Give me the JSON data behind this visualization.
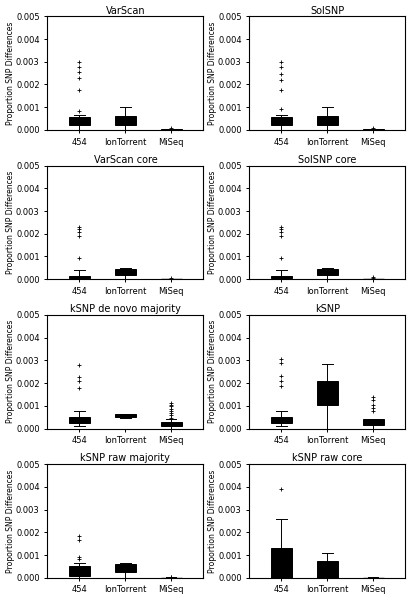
{
  "titles": [
    "VarScan",
    "SolSNP",
    "VarScan core",
    "SolSNP core",
    "kSNP de novo majority",
    "kSNP",
    "kSNP raw majority",
    "kSNP raw core"
  ],
  "categories": [
    "454",
    "IonTorrent",
    "MiSeq"
  ],
  "ylim": [
    0,
    0.005
  ],
  "yticks": [
    0.0,
    0.001,
    0.002,
    0.003,
    0.004,
    0.005
  ],
  "ylabel": "Proportion SNP Differences",
  "box_data": {
    "VarScan": {
      "454": {
        "q1": 0.0002,
        "median": 0.0004,
        "q3": 0.00055,
        "whislo": 0.0,
        "whishi": 0.00065,
        "fliers": [
          0.00085,
          0.00175,
          0.0023,
          0.00255,
          0.00275,
          0.003
        ]
      },
      "IonTorrent": {
        "q1": 0.0002,
        "median": 0.0004,
        "q3": 0.0006,
        "whislo": 0.0,
        "whishi": 0.001,
        "fliers": []
      },
      "MiSeq": {
        "q1": 0.0,
        "median": 0.0,
        "q3": 2e-05,
        "whislo": 0.0,
        "whishi": 3e-05,
        "fliers": [
          9e-05
        ]
      }
    },
    "SolSNP": {
      "454": {
        "q1": 0.0002,
        "median": 0.0004,
        "q3": 0.00055,
        "whislo": 0.0,
        "whishi": 0.00065,
        "fliers": [
          0.0009,
          0.00175,
          0.0022,
          0.00245,
          0.00275,
          0.003
        ]
      },
      "IonTorrent": {
        "q1": 0.0002,
        "median": 0.0004,
        "q3": 0.0006,
        "whislo": 0.0,
        "whishi": 0.001,
        "fliers": []
      },
      "MiSeq": {
        "q1": 0.0,
        "median": 0.0,
        "q3": 2e-05,
        "whislo": 0.0,
        "whishi": 5e-05,
        "fliers": [
          9e-05
        ]
      }
    },
    "VarScan core": {
      "454": {
        "q1": 5e-05,
        "median": 0.0001,
        "q3": 0.00015,
        "whislo": 0.0,
        "whishi": 0.0004,
        "fliers": [
          0.00095,
          0.0019,
          0.0021,
          0.0022,
          0.0023
        ]
      },
      "IonTorrent": {
        "q1": 0.0002,
        "median": 0.0003,
        "q3": 0.00045,
        "whislo": 0.0,
        "whishi": 0.0005,
        "fliers": []
      },
      "MiSeq": {
        "q1": 0.0,
        "median": 0.0,
        "q3": 1.5e-05,
        "whislo": 0.0,
        "whishi": 2e-05,
        "fliers": [
          6.5e-05
        ]
      }
    },
    "SolSNP core": {
      "454": {
        "q1": 5e-05,
        "median": 0.0001,
        "q3": 0.00015,
        "whislo": 0.0,
        "whishi": 0.0004,
        "fliers": [
          0.00095,
          0.0019,
          0.0021,
          0.0022,
          0.0023
        ]
      },
      "IonTorrent": {
        "q1": 0.0002,
        "median": 0.0003,
        "q3": 0.00045,
        "whislo": 0.0,
        "whishi": 0.0005,
        "fliers": []
      },
      "MiSeq": {
        "q1": 0.0,
        "median": 0.0,
        "q3": 1.5e-05,
        "whislo": 0.0,
        "whishi": 2.5e-05,
        "fliers": [
          6e-05,
          7.5e-05
        ]
      }
    },
    "kSNP de novo majority": {
      "454": {
        "q1": 0.00025,
        "median": 0.00035,
        "q3": 0.0005,
        "whislo": 0.0001,
        "whishi": 0.00075,
        "fliers": [
          0.0018,
          0.0021,
          0.00225,
          0.0028
        ]
      },
      "IonTorrent": {
        "q1": 0.0005,
        "median": 0.00058,
        "q3": 0.00062,
        "whislo": 0.00045,
        "whishi": 0.00065,
        "fliers": []
      },
      "MiSeq": {
        "q1": 0.0001,
        "median": 0.0002,
        "q3": 0.0003,
        "whislo": 0.0,
        "whishi": 0.0004,
        "fliers": [
          0.00048,
          0.00058,
          0.00068,
          0.00078,
          0.00088,
          0.00098,
          0.00105,
          0.00112
        ]
      }
    },
    "kSNP": {
      "454": {
        "q1": 0.00025,
        "median": 0.00035,
        "q3": 0.0005,
        "whislo": 0.0001,
        "whishi": 0.00075,
        "fliers": [
          0.00185,
          0.0021,
          0.0023,
          0.0029,
          0.00305
        ]
      },
      "IonTorrent": {
        "q1": 0.00105,
        "median": 0.00155,
        "q3": 0.0021,
        "whislo": 0.0,
        "whishi": 0.00285,
        "fliers": []
      },
      "MiSeq": {
        "q1": 0.00015,
        "median": 0.0003,
        "q3": 0.0004,
        "whislo": 0.0,
        "whishi": 0.00042,
        "fliers": [
          0.00075,
          0.0009,
          0.00105,
          0.00125,
          0.0014
        ]
      }
    },
    "kSNP raw majority": {
      "454": {
        "q1": 0.0001,
        "median": 0.00025,
        "q3": 0.0005,
        "whislo": 0.0,
        "whishi": 0.00065,
        "fliers": [
          0.00085,
          0.0009,
          0.00165,
          0.00185
        ]
      },
      "IonTorrent": {
        "q1": 0.00025,
        "median": 0.00045,
        "q3": 0.0006,
        "whislo": 0.0,
        "whishi": 0.00065,
        "fliers": []
      },
      "MiSeq": {
        "q1": 0.0,
        "median": 0.0,
        "q3": 1e-05,
        "whislo": 0.0,
        "whishi": 1.5e-05,
        "fliers": [
          3.5e-05,
          4.5e-05
        ]
      }
    },
    "kSNP raw core": {
      "454": {
        "q1": 0.0,
        "median": 0.0005,
        "q3": 0.0013,
        "whislo": 0.0,
        "whishi": 0.0026,
        "fliers": [
          0.0039
        ]
      },
      "IonTorrent": {
        "q1": 0.0,
        "median": 0.0005,
        "q3": 0.00075,
        "whislo": 0.0,
        "whishi": 0.0011,
        "fliers": []
      },
      "MiSeq": {
        "q1": 0.0,
        "median": 0.0,
        "q3": 1e-05,
        "whislo": 0.0,
        "whishi": 1.5e-05,
        "fliers": []
      }
    }
  },
  "figsize": [
    4.11,
    6.0
  ],
  "dpi": 100,
  "nrows": 4,
  "ncols": 2,
  "background_color": "#ffffff",
  "box_facecolor": "#f0f0f0",
  "box_edgecolor": "#000000",
  "median_color": "#000000",
  "whisker_color": "#000000",
  "flier_marker": "+",
  "flier_color": "#000000",
  "title_fontsize": 7,
  "label_fontsize": 5.5,
  "tick_fontsize": 6
}
